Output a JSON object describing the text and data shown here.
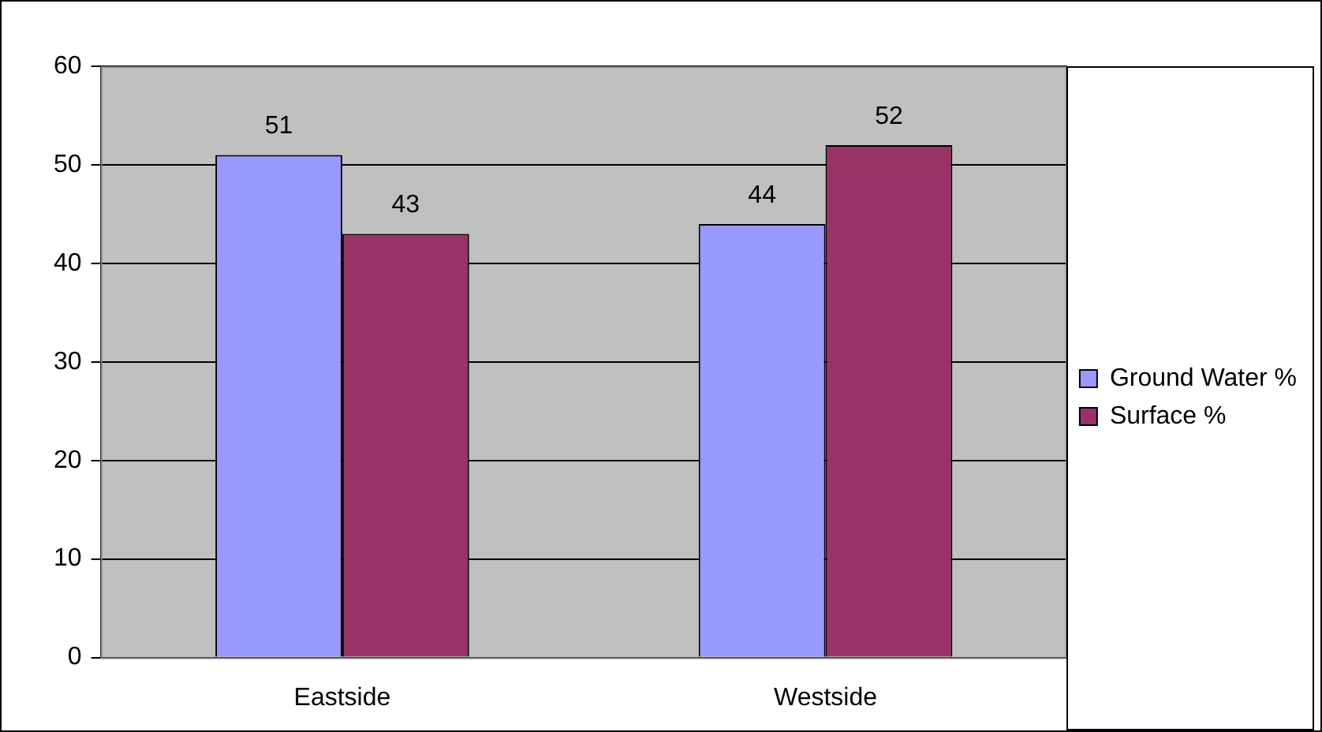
{
  "chart_data": {
    "type": "bar",
    "categories": [
      "Eastside",
      "Westside"
    ],
    "series": [
      {
        "name": "Ground Water %",
        "color": "#9999ff",
        "values": [
          51,
          44
        ]
      },
      {
        "name": "Surface %",
        "color": "#993366",
        "values": [
          43,
          52
        ]
      }
    ],
    "ylim": [
      0,
      60
    ],
    "yticks": [
      0,
      10,
      20,
      30,
      40,
      50,
      60
    ],
    "grid": "y",
    "legend": "right",
    "data_labels": true
  }
}
